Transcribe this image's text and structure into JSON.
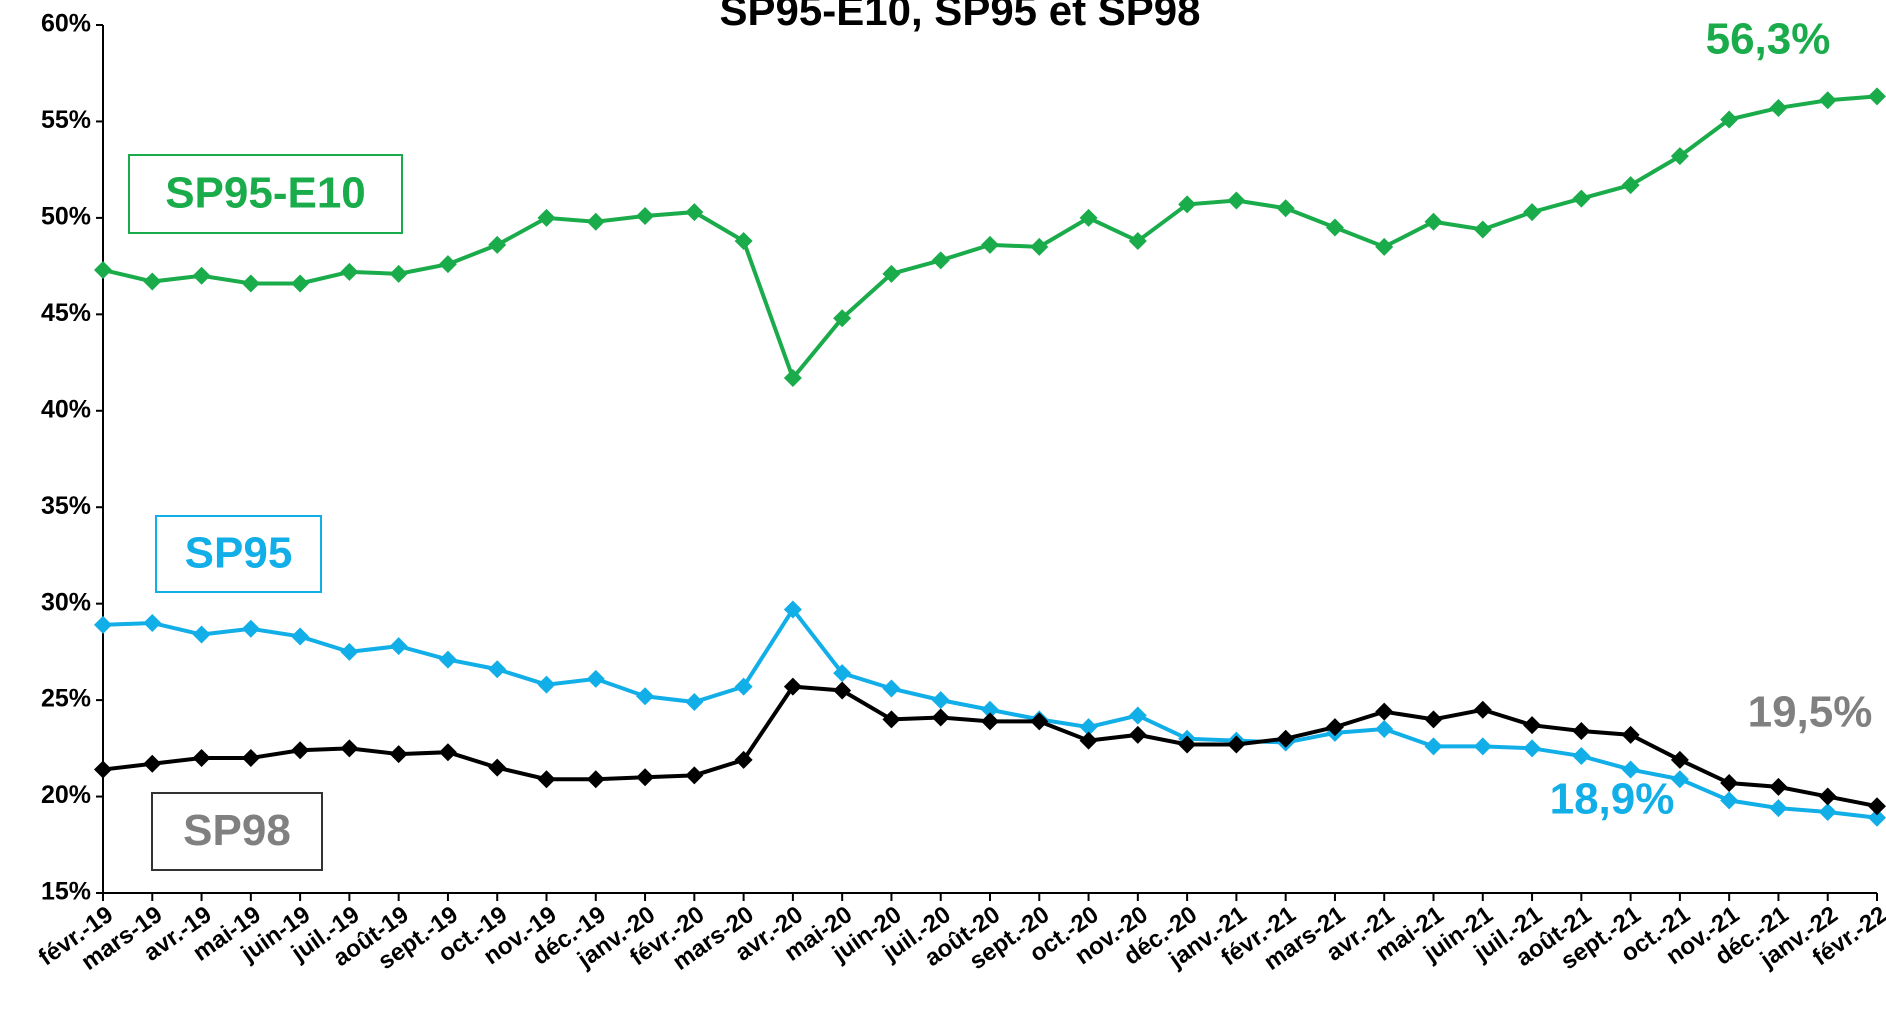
{
  "chart_data": {
    "type": "line",
    "title": "SP95-E10, SP95 et SP98",
    "categories": [
      "févr.-19",
      "mars-19",
      "avr.-19",
      "mai-19",
      "juin-19",
      "juil.-19",
      "août-19",
      "sept.-19",
      "oct.-19",
      "nov.-19",
      "déc.-19",
      "janv.-20",
      "févr.-20",
      "mars-20",
      "avr.-20",
      "mai-20",
      "juin-20",
      "juil.-20",
      "août-20",
      "sept.-20",
      "oct.-20",
      "nov.-20",
      "déc.-20",
      "janv.-21",
      "févr.-21",
      "mars-21",
      "avr.-21",
      "mai-21",
      "juin-21",
      "juil.-21",
      "août-21",
      "sept.-21",
      "oct.-21",
      "nov.-21",
      "déc.-21",
      "janv.-22",
      "févr.-22"
    ],
    "series": [
      {
        "name": "SP95-E10",
        "color": "#1aab4b",
        "label_color": "#1aab4b",
        "values": [
          47.3,
          46.7,
          47.0,
          46.6,
          46.6,
          47.2,
          47.1,
          47.6,
          48.6,
          50.0,
          49.8,
          50.1,
          50.3,
          48.8,
          41.7,
          44.8,
          47.1,
          47.8,
          48.6,
          48.5,
          50.0,
          48.8,
          50.7,
          50.9,
          50.5,
          49.5,
          48.5,
          49.8,
          49.4,
          50.3,
          51.0,
          51.7,
          53.2,
          55.1,
          55.7,
          56.1,
          56.3
        ],
        "value_labels": [
          null,
          null,
          null,
          null,
          null,
          null,
          null,
          null,
          null,
          null,
          null,
          null,
          null,
          null,
          null,
          null,
          null,
          null,
          null,
          null,
          null,
          null,
          null,
          null,
          null,
          null,
          null,
          null,
          null,
          null,
          null,
          null,
          null,
          null,
          null,
          null,
          "56,3%"
        ]
      },
      {
        "name": "SP95",
        "color": "#12aee8",
        "label_color": "#12aee8",
        "values": [
          28.9,
          29.0,
          28.4,
          28.7,
          28.3,
          27.5,
          27.8,
          27.1,
          26.6,
          25.8,
          26.1,
          25.2,
          24.9,
          25.7,
          29.7,
          26.4,
          25.6,
          25.0,
          24.5,
          24.0,
          23.6,
          24.2,
          23.0,
          22.9,
          22.8,
          23.3,
          23.5,
          22.6,
          22.6,
          22.5,
          22.1,
          21.4,
          20.9,
          19.8,
          19.4,
          19.2,
          18.9
        ],
        "value_labels": [
          null,
          null,
          null,
          null,
          null,
          null,
          null,
          null,
          null,
          null,
          null,
          null,
          null,
          null,
          null,
          null,
          null,
          null,
          null,
          null,
          null,
          null,
          null,
          null,
          null,
          null,
          null,
          null,
          null,
          null,
          null,
          null,
          null,
          null,
          null,
          null,
          "18,9%"
        ]
      },
      {
        "name": "SP98",
        "color": "#000000",
        "label_color": "#808080",
        "values": [
          21.4,
          21.7,
          22.0,
          22.0,
          22.4,
          22.5,
          22.2,
          22.3,
          21.5,
          20.9,
          20.9,
          21.0,
          21.1,
          21.9,
          25.7,
          25.5,
          24.0,
          24.1,
          23.9,
          23.9,
          22.9,
          23.2,
          22.7,
          22.7,
          23.0,
          23.6,
          24.4,
          24.0,
          24.5,
          23.7,
          23.4,
          23.2,
          21.9,
          20.7,
          20.5,
          20.0,
          19.5
        ],
        "value_labels": [
          null,
          null,
          null,
          null,
          null,
          null,
          null,
          null,
          null,
          null,
          null,
          null,
          null,
          null,
          null,
          null,
          null,
          null,
          null,
          null,
          null,
          null,
          null,
          null,
          null,
          null,
          null,
          null,
          null,
          null,
          null,
          null,
          null,
          null,
          null,
          null,
          "19,5%"
        ]
      }
    ],
    "ylim": [
      15,
      60
    ],
    "yticks": [
      {
        "value": 15,
        "label": "15%"
      },
      {
        "value": 20,
        "label": "20%"
      },
      {
        "value": 25,
        "label": "25%"
      },
      {
        "value": 30,
        "label": "30%"
      },
      {
        "value": 35,
        "label": "35%"
      },
      {
        "value": 40,
        "label": "40%"
      },
      {
        "value": 45,
        "label": "45%"
      },
      {
        "value": 50,
        "label": "50%"
      },
      {
        "value": 55,
        "label": "55%"
      },
      {
        "value": 60,
        "label": "60%"
      }
    ],
    "grid": false
  }
}
